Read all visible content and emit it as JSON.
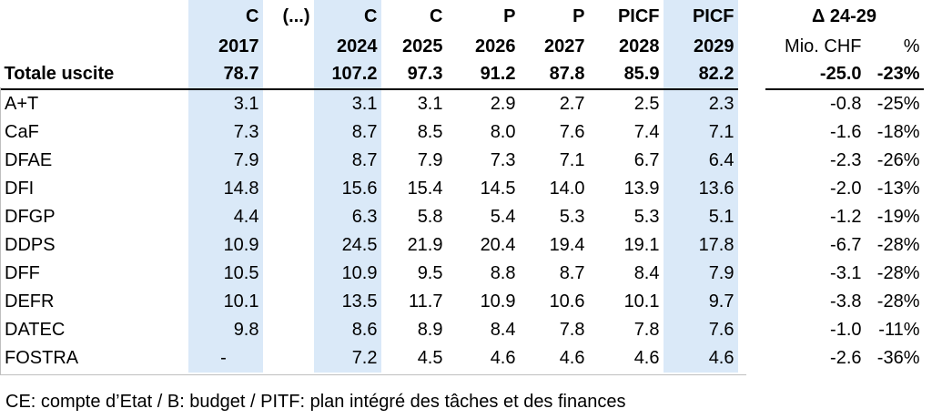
{
  "header": {
    "type_row": [
      "",
      "C",
      "(...)",
      "C",
      "C",
      "P",
      "P",
      "PICF",
      "PICF",
      "",
      "Δ 24-29",
      ""
    ],
    "year_row": [
      "",
      "2017",
      "",
      "2024",
      "2025",
      "2026",
      "2027",
      "2028",
      "2029",
      "",
      "Mio. CHF",
      "%"
    ]
  },
  "total": {
    "label": "Totale uscite",
    "values": [
      "78.7",
      "107.2",
      "97.3",
      "91.2",
      "87.8",
      "85.9",
      "82.2"
    ],
    "delta_abs": "-25.0",
    "delta_pct": "-23%"
  },
  "rows": [
    {
      "label": "A+T",
      "values": [
        "3.1",
        "3.1",
        "3.1",
        "2.9",
        "2.7",
        "2.5",
        "2.3"
      ],
      "delta_abs": "-0.8",
      "delta_pct": "-25%"
    },
    {
      "label": "CaF",
      "values": [
        "7.3",
        "8.7",
        "8.5",
        "8.0",
        "7.6",
        "7.4",
        "7.1"
      ],
      "delta_abs": "-1.6",
      "delta_pct": "-18%"
    },
    {
      "label": "DFAE",
      "values": [
        "7.9",
        "8.7",
        "7.9",
        "7.3",
        "7.1",
        "6.7",
        "6.4"
      ],
      "delta_abs": "-2.3",
      "delta_pct": "-26%"
    },
    {
      "label": "DFI",
      "values": [
        "14.8",
        "15.6",
        "15.4",
        "14.5",
        "14.0",
        "13.9",
        "13.6"
      ],
      "delta_abs": "-2.0",
      "delta_pct": "-13%"
    },
    {
      "label": "DFGP",
      "values": [
        "4.4",
        "6.3",
        "5.8",
        "5.4",
        "5.3",
        "5.3",
        "5.1"
      ],
      "delta_abs": "-1.2",
      "delta_pct": "-19%"
    },
    {
      "label": "DDPS",
      "values": [
        "10.9",
        "24.5",
        "21.9",
        "20.4",
        "19.4",
        "19.1",
        "17.8"
      ],
      "delta_abs": "-6.7",
      "delta_pct": "-28%"
    },
    {
      "label": "DFF",
      "values": [
        "10.5",
        "10.9",
        "9.5",
        "8.8",
        "8.7",
        "8.4",
        "7.9"
      ],
      "delta_abs": "-3.1",
      "delta_pct": "-28%"
    },
    {
      "label": "DEFR",
      "values": [
        "10.1",
        "13.5",
        "11.7",
        "10.9",
        "10.6",
        "10.1",
        "9.7"
      ],
      "delta_abs": "-3.8",
      "delta_pct": "-28%"
    },
    {
      "label": "DATEC",
      "values": [
        "9.8",
        "8.6",
        "8.9",
        "8.4",
        "7.8",
        "7.8",
        "7.6"
      ],
      "delta_abs": "-1.0",
      "delta_pct": "-11%"
    },
    {
      "label": "FOSTRA",
      "values": [
        "-",
        "7.2",
        "4.5",
        "4.6",
        "4.6",
        "4.6",
        "4.6"
      ],
      "delta_abs": "-2.6",
      "delta_pct": "-36%"
    }
  ],
  "footnote": "CE: compte d’Etat / B: budget / PITF: plan intégré des tâches et des finances",
  "colors": {
    "highlight": "#dae9f8"
  }
}
